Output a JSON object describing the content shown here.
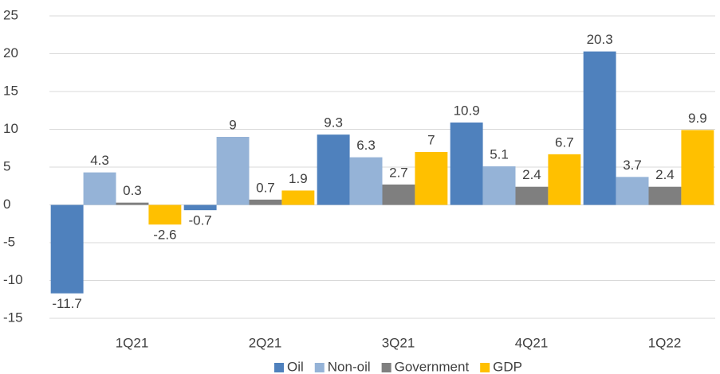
{
  "chart_data": {
    "type": "bar",
    "categories": [
      "1Q21",
      "2Q21",
      "3Q21",
      "4Q21",
      "1Q22"
    ],
    "series": [
      {
        "name": "Oil",
        "color": "#4f81bd",
        "values": [
          -11.7,
          -0.7,
          9.3,
          10.9,
          20.3
        ]
      },
      {
        "name": "Non-oil",
        "color": "#95b3d7",
        "values": [
          4.3,
          9,
          6.3,
          5.1,
          3.7
        ]
      },
      {
        "name": "Government",
        "color": "#7f7f7f",
        "values": [
          0.3,
          0.7,
          2.7,
          2.4,
          2.4
        ]
      },
      {
        "name": "GDP",
        "color": "#ffc000",
        "values": [
          -2.6,
          1.9,
          7,
          6.7,
          9.9
        ]
      }
    ],
    "ylim": [
      -15,
      25
    ],
    "yticks": [
      -15,
      -10,
      -5,
      0,
      5,
      10,
      15,
      20,
      25
    ],
    "grid": true,
    "legend": "bottom"
  }
}
